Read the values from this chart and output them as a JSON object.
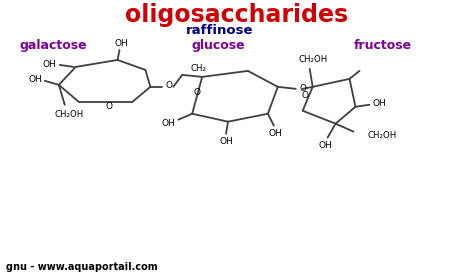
{
  "title": "oligosaccharides",
  "title_color": "#cc0000",
  "subtitle": "raffinose",
  "subtitle_color": "#000080",
  "label_galactose": "galactose",
  "label_glucose": "glucose",
  "label_fructose": "fructose",
  "label_color": "#7b0099",
  "watermark": "gnu - www.aquaportail.com",
  "bg_color": "#ffffff",
  "line_color": "#404040",
  "text_color": "#000000"
}
